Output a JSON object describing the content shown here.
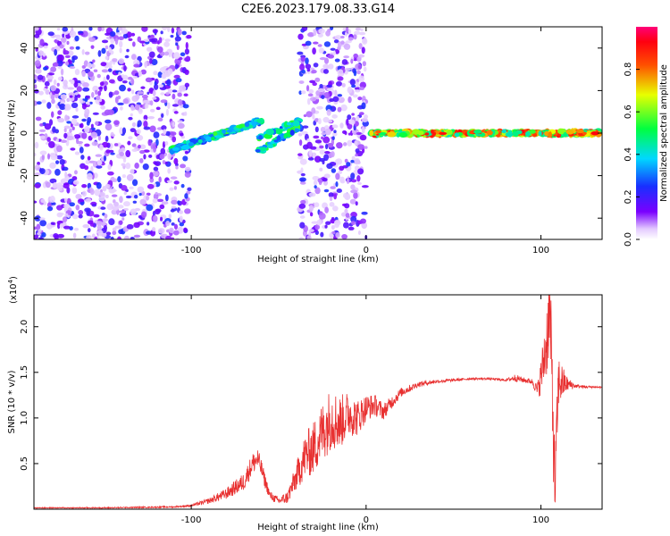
{
  "title": "C2E6.2023.179.08.33.G14",
  "colors": {
    "snr_line": "#e83030",
    "spectrum_points": "#7a2cff",
    "frame": "#000000"
  },
  "chart_data": [
    {
      "type": "heatmap",
      "xlabel": "Height of straight line (km)",
      "ylabel": "Frequency (Hz)",
      "xlim": [
        -190,
        135
      ],
      "ylim": [
        -50,
        50
      ],
      "xticks": [
        -100,
        0,
        100
      ],
      "xtick_labels": [
        "-100",
        "0",
        "100"
      ],
      "yticks": [
        -40,
        -20,
        0,
        20,
        40
      ],
      "ytick_labels": [
        "-40",
        "-20",
        "0",
        "20",
        "40"
      ],
      "colorbar": {
        "label": "Normalized spectral amplitude",
        "range": [
          0,
          1
        ],
        "ticks": [
          0,
          0.2,
          0.4,
          0.6,
          0.8
        ],
        "tick_labels": [
          "0.0",
          "0.2",
          "0.4",
          "0.6",
          "0.8"
        ],
        "colormap": "rainbow (white-purple-blue-cyan-green-yellow-red-magenta)"
      },
      "features": [
        {
          "x_range": [
            -190,
            -101
          ],
          "y_range": [
            -50,
            50
          ],
          "amplitude": 0.15
        },
        {
          "x_range": [
            -112,
            -59
          ],
          "y_range": [
            -10,
            8
          ],
          "amplitude": 0.45
        },
        {
          "x_range": [
            -62,
            -38
          ],
          "y_range": [
            -12,
            7
          ],
          "amplitude": 0.45
        },
        {
          "x_range": [
            -38,
            0
          ],
          "y_range": [
            -50,
            50
          ],
          "amplitude": 0.15
        },
        {
          "x_range": [
            3,
            133
          ],
          "y_range": [
            -2,
            2
          ],
          "amplitude": 0.75
        }
      ]
    },
    {
      "type": "line",
      "xlabel": "Height of straight line (km)",
      "ylabel": "SNR (10 * v/v)",
      "exponent_label": "(x10",
      "exponent_power": "4",
      "exponent_close": ")",
      "xlim": [
        -190,
        135
      ],
      "ylim": [
        0,
        23500
      ],
      "xticks": [
        -100,
        0,
        100
      ],
      "xtick_labels": [
        "-100",
        "0",
        "100"
      ],
      "yticks": [
        5000,
        10000,
        15000,
        20000
      ],
      "ytick_labels": [
        "0.5",
        "1.0",
        "1.5",
        "2.0"
      ],
      "x": [
        -190,
        -150,
        -110,
        -100,
        -90,
        -80,
        -70,
        -65,
        -62,
        -60,
        -58,
        -55,
        -50,
        -45,
        -40,
        -35,
        -30,
        -25,
        -20,
        -15,
        -10,
        -5,
        0,
        5,
        10,
        15,
        20,
        30,
        40,
        50,
        60,
        70,
        80,
        85,
        90,
        95,
        98,
        100,
        103,
        105,
        107,
        108,
        110,
        115,
        120,
        125,
        130,
        135
      ],
      "y": [
        150,
        150,
        250,
        400,
        900,
        1700,
        3000,
        5000,
        5500,
        4500,
        3200,
        1500,
        900,
        1300,
        3500,
        5800,
        6700,
        8500,
        10000,
        9500,
        10500,
        10000,
        11100,
        11400,
        10700,
        11800,
        12800,
        13700,
        14000,
        14150,
        14300,
        14300,
        14150,
        14400,
        14150,
        14000,
        13000,
        14500,
        18000,
        22000,
        10000,
        2000,
        14000,
        13700,
        13500,
        13400,
        13400,
        13350
      ],
      "noise_amplitude": [
        50,
        60,
        80,
        120,
        300,
        600,
        1000,
        1200,
        1200,
        1000,
        800,
        500,
        400,
        700,
        1500,
        2500,
        3000,
        3300,
        3500,
        3000,
        2500,
        2000,
        1500,
        1200,
        900,
        700,
        500,
        300,
        200,
        150,
        120,
        120,
        120,
        400,
        300,
        300,
        800,
        2000,
        4000,
        5000,
        6000,
        4000,
        3000,
        800,
        200,
        150,
        120,
        120
      ]
    }
  ]
}
